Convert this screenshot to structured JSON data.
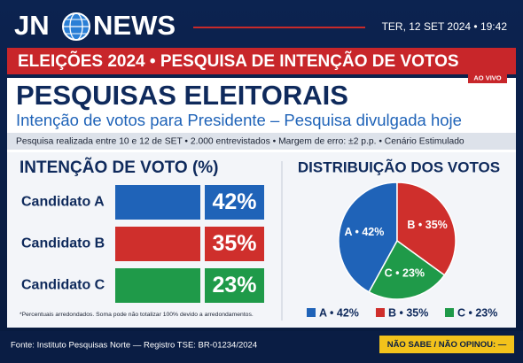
{
  "header": {
    "logo_left": "JN",
    "logo_right": "NEWS",
    "datetime": "TER, 12 SET 2024 • 19:42"
  },
  "banner": "ELEIÇÕES 2024 • PESQUISA DE INTENÇÃO DE VOTOS",
  "live": "AO VIVO",
  "title": "PESQUISAS ELEITORAIS",
  "subtitle": "Intenção de votos para Presidente – Pesquisa divulgada hoje",
  "info": "Pesquisa realizada entre 10 e 12 de SET • 2.000 entrevistados • Margem de erro: ±2 p.p. • Cenário Estimulado",
  "chart_data": [
    {
      "type": "bar",
      "title": "INTENÇÃO DE VOTO (%)",
      "categories": [
        "Candidato A",
        "Candidato B",
        "Candidato C"
      ],
      "values": [
        42,
        35,
        23
      ],
      "value_labels": [
        "42%",
        "35%",
        "23%"
      ],
      "colors": [
        "#1f63b8",
        "#cf2f2c",
        "#1f9a49"
      ],
      "note": "*Percentuais arredondados. Soma pode não totalizar 100% devido a arredondamentos."
    },
    {
      "type": "pie",
      "title": "DISTRIBUIÇÃO DOS VOTOS",
      "categories": [
        "A",
        "B",
        "C"
      ],
      "values": [
        42,
        35,
        23
      ],
      "value_labels": [
        "A • 42%",
        "B • 35%",
        "C • 23%"
      ],
      "colors": [
        "#1f63b8",
        "#cf2f2c",
        "#1f9a49"
      ]
    }
  ],
  "footer": {
    "source": "Fonte: Instituto Pesquisas Norte — Registro TSE: BR-01234/2024",
    "undecided": "NÃO SABE / NÃO OPINOU: —"
  }
}
